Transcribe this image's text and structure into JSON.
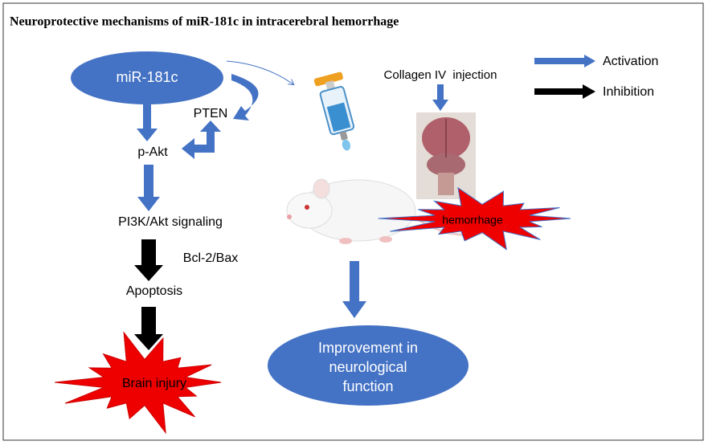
{
  "header": {
    "title": "Neuroprotective mechanisms of miR-181c in intracerebral hemorrhage"
  },
  "nodes": {
    "mir": "miR-181c",
    "pten": "PTEN",
    "pakt": "p-Akt",
    "pi3k": "PI3K/Akt signaling",
    "bcl": "Bcl-2/Bax",
    "apoptosis": "Apoptosis",
    "injury": "Brain injury",
    "collagen": "Collagen IV  injection",
    "hemorrhage": "hemorrhage",
    "improvement": [
      "Improvement in",
      "neurological",
      "function"
    ]
  },
  "legend": {
    "activation": "Activation",
    "inhibition": "Inhibition"
  }
}
